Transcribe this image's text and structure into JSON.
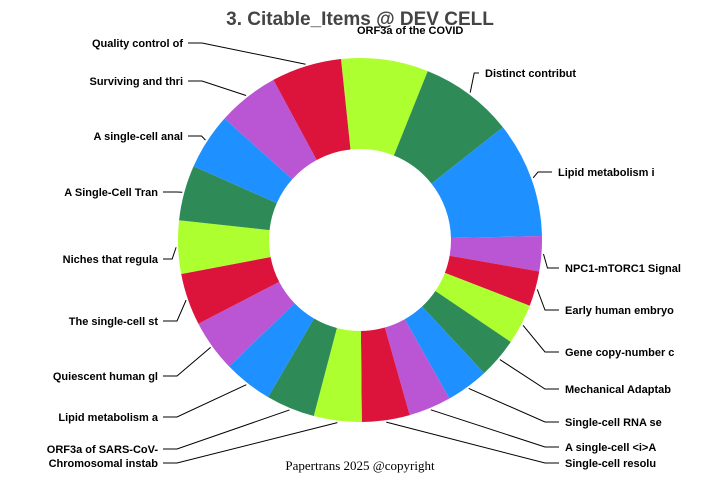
{
  "chart_data": {
    "type": "pie",
    "style": "donut",
    "title": "3. Citable_Items @ DEV CELL",
    "categories": [
      "ORF3a of the COVID",
      "Distinct contribut",
      "Lipid metabolism i",
      "NPC1-mTORC1 Signal",
      "Early human embryo",
      "Gene copy-number c",
      "Mechanical Adaptab",
      "Single-cell RNA se",
      "A single-cell <i>A",
      "Single-cell resolu",
      "Chromosomal instab",
      "ORF3a of SARS-CoV-",
      "Lipid metabolism a",
      "Quiescent human gl",
      "The single-cell st",
      "Niches that regula",
      "A Single-Cell Tran",
      "A single-cell anal",
      "Surviving and thri",
      "Quality control of"
    ],
    "values": [
      8.2,
      8.8,
      10.9,
      3.3,
      3.3,
      3.8,
      3.8,
      4.0,
      4.0,
      4.5,
      4.5,
      4.6,
      4.6,
      4.9,
      4.9,
      5.0,
      5.2,
      5.3,
      5.8,
      6.6
    ],
    "colors": [
      "#adff2f",
      "#2e8b57",
      "#1e90ff",
      "#ba55d3",
      "#dc143c",
      "#adff2f",
      "#2e8b57",
      "#1e90ff",
      "#ba55d3",
      "#dc143c",
      "#adff2f",
      "#2e8b57",
      "#1e90ff",
      "#ba55d3",
      "#dc143c",
      "#adff2f",
      "#2e8b57",
      "#1e90ff",
      "#ba55d3",
      "#dc143c"
    ],
    "start_angle_deg": -6,
    "direction": "clockwise",
    "hole_ratio": 0.5,
    "legend": "none"
  },
  "footer": "Papertrans 2025 @copyright"
}
